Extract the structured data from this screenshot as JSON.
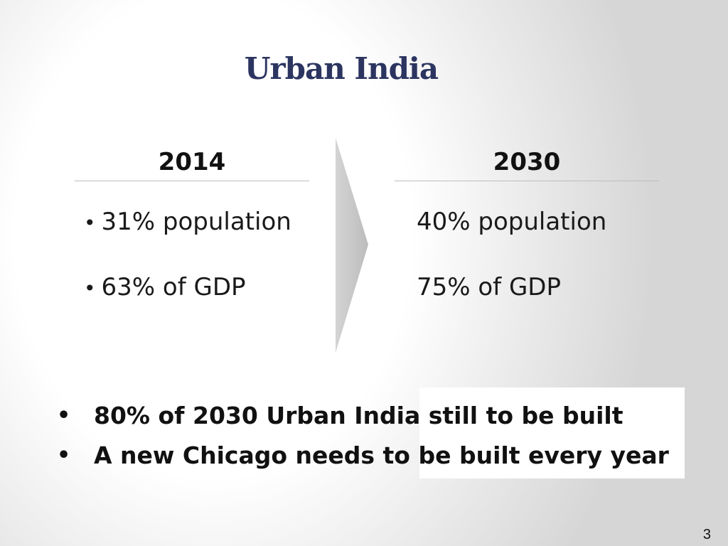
{
  "title": "Urban India",
  "left_column": {
    "header": "2014",
    "items": [
      "31% population",
      "63% of GDP"
    ]
  },
  "right_column": {
    "header": "2030",
    "items": [
      "40% population",
      "75% of GDP"
    ]
  },
  "callout": {
    "items": [
      "80% of 2030 Urban India still to be built",
      "A new Chicago needs to be built every year"
    ]
  },
  "page_number": "3",
  "colors": {
    "title": "#2c3560",
    "arrow": "#c9c9c9",
    "text": "#111111"
  },
  "icons": {
    "transition": "chevron-arrow-icon",
    "bullet": "bullet-icon"
  }
}
